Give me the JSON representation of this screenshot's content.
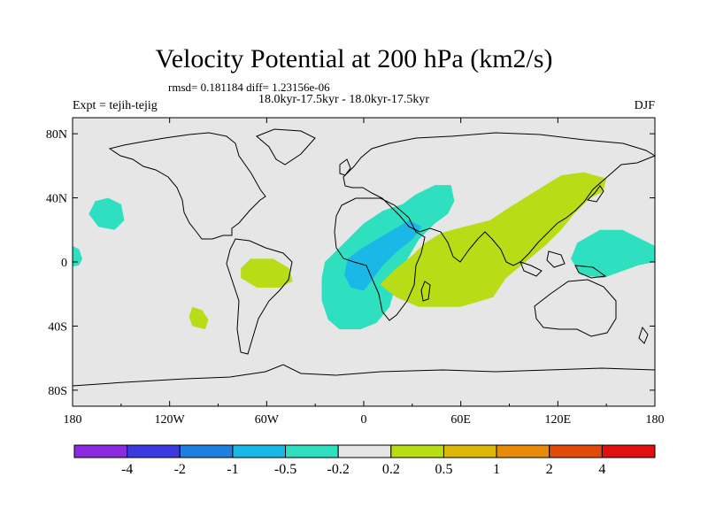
{
  "header": {
    "title": "Velocity Potential at 200 hPa (km2/s)",
    "stats_line": "rmsd= 0.181184 diff= 1.23156e-06",
    "period_line": "18.0kyr-17.5kyr - 18.0kyr-17.5kyr",
    "experiment": "Expt = tejih-tejig",
    "season": "DJF"
  },
  "chart_data": {
    "type": "heatmap",
    "title": "Velocity Potential at 200 hPa (km2/s)",
    "xlim": [
      -180,
      180
    ],
    "ylim": [
      -90,
      90
    ],
    "x_ticks": [
      {
        "value": -180,
        "label": "180"
      },
      {
        "value": -120,
        "label": "120W"
      },
      {
        "value": -60,
        "label": "60W"
      },
      {
        "value": 0,
        "label": "0"
      },
      {
        "value": 60,
        "label": "60E"
      },
      {
        "value": 120,
        "label": "120E"
      },
      {
        "value": 180,
        "label": "180"
      }
    ],
    "y_ticks": [
      {
        "value": 80,
        "label": "80N"
      },
      {
        "value": 40,
        "label": "40N"
      },
      {
        "value": 0,
        "label": "0"
      },
      {
        "value": -40,
        "label": "40S"
      },
      {
        "value": -80,
        "label": "80S"
      }
    ],
    "colorbar": {
      "colors": [
        "#8a2be2",
        "#3a3ae0",
        "#1e7fe0",
        "#19b8e6",
        "#2ee0c0",
        "#e6e6e6",
        "#b8dc16",
        "#dcb80a",
        "#e88a0a",
        "#e04a0a",
        "#e01010"
      ],
      "labels": [
        "-4",
        "-2",
        "-1",
        "-0.5",
        "-0.2",
        "0.2",
        "0.5",
        "1",
        "2",
        "4"
      ]
    },
    "regions": [
      {
        "name": "atlantic-africa-negative",
        "level": -0.2,
        "color": "#2ee0c0",
        "points": [
          [
            -15,
            -42
          ],
          [
            -2,
            -42
          ],
          [
            8,
            -38
          ],
          [
            16,
            -28
          ],
          [
            20,
            -14
          ],
          [
            26,
            0
          ],
          [
            34,
            14
          ],
          [
            44,
            24
          ],
          [
            52,
            30
          ],
          [
            56,
            38
          ],
          [
            54,
            48
          ],
          [
            44,
            48
          ],
          [
            32,
            42
          ],
          [
            24,
            36
          ],
          [
            12,
            32
          ],
          [
            0,
            24
          ],
          [
            -8,
            16
          ],
          [
            -16,
            8
          ],
          [
            -24,
            0
          ],
          [
            -26,
            -10
          ],
          [
            -26,
            -24
          ],
          [
            -22,
            -36
          ]
        ]
      },
      {
        "name": "atlantic-core-negative",
        "level": -0.5,
        "color": "#19b8e6",
        "points": [
          [
            -8,
            -16
          ],
          [
            0,
            -18
          ],
          [
            6,
            -10
          ],
          [
            12,
            -2
          ],
          [
            20,
            6
          ],
          [
            30,
            14
          ],
          [
            36,
            22
          ],
          [
            28,
            26
          ],
          [
            18,
            20
          ],
          [
            8,
            14
          ],
          [
            -2,
            8
          ],
          [
            -10,
            2
          ],
          [
            -12,
            -8
          ]
        ]
      },
      {
        "name": "north-pacific-negative",
        "level": -0.2,
        "color": "#2ee0c0",
        "points": [
          [
            -164,
            22
          ],
          [
            -154,
            20
          ],
          [
            -148,
            26
          ],
          [
            -150,
            36
          ],
          [
            -158,
            40
          ],
          [
            -166,
            38
          ],
          [
            -170,
            30
          ]
        ]
      },
      {
        "name": "east-pacific-negative-west",
        "level": -0.2,
        "color": "#2ee0c0",
        "points": [
          [
            -180,
            10
          ],
          [
            -176,
            8
          ],
          [
            -174,
            2
          ],
          [
            -176,
            -2
          ],
          [
            -180,
            -3
          ]
        ]
      },
      {
        "name": "west-pacific-negative",
        "level": -0.2,
        "color": "#2ee0c0",
        "points": [
          [
            180,
            10
          ],
          [
            160,
            20
          ],
          [
            146,
            20
          ],
          [
            132,
            12
          ],
          [
            128,
            2
          ],
          [
            134,
            -8
          ],
          [
            148,
            -10
          ],
          [
            170,
            -2
          ],
          [
            180,
            0
          ]
        ]
      },
      {
        "name": "indian-asia-positive",
        "level": 0.2,
        "color": "#b8dc16",
        "points": [
          [
            10,
            -14
          ],
          [
            20,
            -22
          ],
          [
            34,
            -28
          ],
          [
            60,
            -28
          ],
          [
            80,
            -22
          ],
          [
            88,
            -10
          ],
          [
            100,
            0
          ],
          [
            112,
            10
          ],
          [
            122,
            20
          ],
          [
            130,
            30
          ],
          [
            140,
            40
          ],
          [
            148,
            44
          ],
          [
            150,
            52
          ],
          [
            136,
            56
          ],
          [
            122,
            54
          ],
          [
            106,
            44
          ],
          [
            90,
            34
          ],
          [
            78,
            26
          ],
          [
            62,
            22
          ],
          [
            48,
            18
          ],
          [
            38,
            12
          ],
          [
            30,
            4
          ],
          [
            20,
            -4
          ]
        ]
      },
      {
        "name": "south-america-positive",
        "level": 0.2,
        "color": "#b8dc16",
        "points": [
          [
            -76,
            -4
          ],
          [
            -70,
            2
          ],
          [
            -56,
            2
          ],
          [
            -46,
            -4
          ],
          [
            -44,
            -12
          ],
          [
            -52,
            -16
          ],
          [
            -66,
            -16
          ],
          [
            -76,
            -10
          ]
        ]
      },
      {
        "name": "south-pacific-positive",
        "level": 0.2,
        "color": "#b8dc16",
        "points": [
          [
            -106,
            -28
          ],
          [
            -100,
            -30
          ],
          [
            -96,
            -36
          ],
          [
            -98,
            -42
          ],
          [
            -106,
            -40
          ],
          [
            -108,
            -34
          ]
        ]
      }
    ]
  }
}
